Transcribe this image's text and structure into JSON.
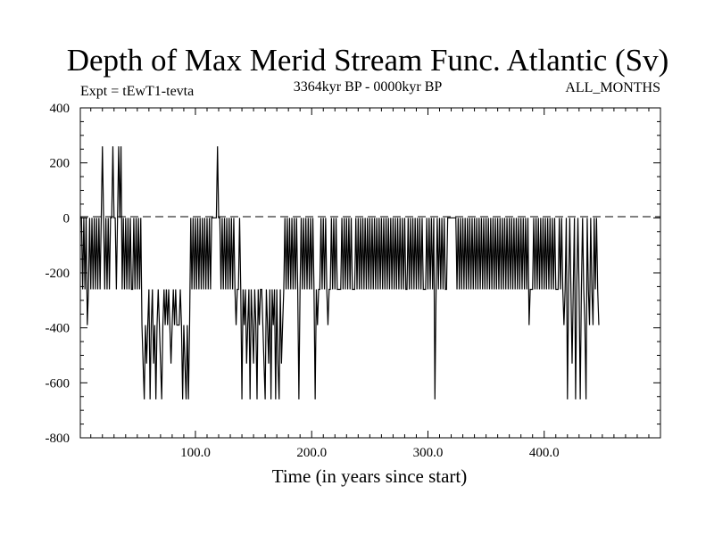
{
  "chart_data": {
    "type": "line",
    "title": "Depth of Max Merid Stream Func. Atlantic (Sv)",
    "experiment": "Expt = tEwT1-tevta",
    "period": "3364kyr BP - 0000kyr BP",
    "season": "ALL_MONTHS",
    "xlabel": "Time (in years since start)",
    "ylabel": "",
    "xlim": [
      1,
      500
    ],
    "ylim": [
      -800,
      400
    ],
    "x_ticks": [
      100,
      200,
      300,
      400
    ],
    "x_tick_labels": [
      "100.0",
      "200.0",
      "300.0",
      "400.0"
    ],
    "y_ticks": [
      -800,
      -600,
      -400,
      -200,
      0,
      200,
      400
    ],
    "y_tick_labels": [
      "-800",
      "-600",
      "-400",
      "-200",
      "0",
      "200",
      "400"
    ],
    "zero_line": "dashed",
    "series": [
      {
        "name": "depth_of_max_stream_function",
        "x_start": 1,
        "x_step": 1,
        "values": [
          0,
          0,
          -260,
          0,
          -260,
          0,
          -390,
          -260,
          0,
          -260,
          0,
          -260,
          0,
          -260,
          0,
          -260,
          0,
          -260,
          0,
          260,
          0,
          -260,
          0,
          -260,
          0,
          -260,
          0,
          0,
          260,
          0,
          0,
          -260,
          0,
          260,
          0,
          260,
          -260,
          0,
          -260,
          0,
          -260,
          0,
          -260,
          0,
          -260,
          -260,
          0,
          -260,
          0,
          -260,
          0,
          -260,
          0,
          -390,
          -530,
          -660,
          -390,
          -530,
          -390,
          -260,
          -660,
          -390,
          -260,
          -530,
          -390,
          -660,
          -390,
          -260,
          -390,
          -530,
          -660,
          -390,
          -260,
          -390,
          -260,
          -390,
          -260,
          -390,
          -530,
          -390,
          -260,
          -390,
          -260,
          -390,
          -390,
          -390,
          -260,
          -390,
          -660,
          -390,
          -530,
          -660,
          -390,
          -660,
          -390,
          0,
          -260,
          0,
          -260,
          0,
          -260,
          0,
          -260,
          0,
          -260,
          0,
          -260,
          0,
          -260,
          0,
          -260,
          0,
          -260,
          0,
          0,
          0,
          0,
          0,
          260,
          0,
          0,
          -260,
          0,
          -260,
          0,
          -260,
          0,
          -260,
          0,
          -260,
          0,
          -260,
          0,
          -260,
          -390,
          -260,
          -260,
          0,
          -260,
          -660,
          -260,
          -390,
          -260,
          -530,
          -390,
          -260,
          -660,
          -260,
          -390,
          -530,
          -260,
          -390,
          -660,
          -260,
          -390,
          -260,
          -260,
          -390,
          -530,
          -660,
          -260,
          -390,
          -530,
          -260,
          -660,
          -260,
          -390,
          -260,
          -660,
          -260,
          -530,
          -660,
          -260,
          -530,
          -390,
          -260,
          0,
          -260,
          0,
          -260,
          0,
          -260,
          0,
          -260,
          0,
          -260,
          0,
          -260,
          -660,
          -260,
          0,
          -260,
          0,
          -260,
          0,
          -260,
          0,
          -260,
          0,
          -260,
          0,
          -260,
          -660,
          -260,
          -390,
          -260,
          -260,
          0,
          -260,
          0,
          -260,
          0,
          -260,
          -390,
          -260,
          -260,
          0,
          -260,
          0,
          -260,
          0,
          -260,
          -260,
          -260,
          -260,
          0,
          -260,
          0,
          -260,
          0,
          -260,
          0,
          -260,
          0,
          -260,
          -260,
          -260,
          0,
          -260,
          0,
          -260,
          0,
          -260,
          0,
          -260,
          0,
          -260,
          0,
          -260,
          0,
          -260,
          0,
          -260,
          0,
          -260,
          0,
          -260,
          0,
          -260,
          0,
          -260,
          0,
          -260,
          0,
          -260,
          0,
          -260,
          0,
          -260,
          0,
          -260,
          0,
          -260,
          0,
          -260,
          0,
          -260,
          0,
          -260,
          0,
          -260,
          -260,
          0,
          -260,
          0,
          -260,
          0,
          -260,
          0,
          -260,
          0,
          -260,
          0,
          -260,
          0,
          -260,
          -260,
          -260,
          0,
          -260,
          0,
          -260,
          0,
          -260,
          0,
          -660,
          -260,
          0,
          -260,
          0,
          -260,
          0,
          -260,
          0,
          -260,
          -260,
          0,
          0,
          0,
          0,
          0,
          0,
          0,
          0,
          -260,
          0,
          -260,
          0,
          -260,
          0,
          -260,
          0,
          -260,
          0,
          -260,
          0,
          -260,
          0,
          -260,
          0,
          -260,
          0,
          -260,
          0,
          -260,
          0,
          -260,
          0,
          -260,
          0,
          -260,
          0,
          -260,
          0,
          -260,
          0,
          -260,
          0,
          -260,
          0,
          -260,
          0,
          -260,
          0,
          -260,
          0,
          -260,
          0,
          -260,
          0,
          -260,
          0,
          -260,
          0,
          -260,
          0,
          -260,
          0,
          -260,
          0,
          -260,
          0,
          -260,
          0,
          -260,
          0,
          -390,
          -260,
          -260,
          -260,
          0,
          -260,
          0,
          -260,
          0,
          -260,
          0,
          -260,
          0,
          -260,
          0,
          -260,
          0,
          -260,
          0,
          -260,
          0,
          -260,
          0,
          -260,
          -260,
          -260,
          0,
          -260,
          0,
          -260,
          -390,
          -260,
          0,
          -660,
          -260,
          0,
          -260,
          -530,
          -260,
          0,
          -660,
          -260,
          0,
          -260,
          -660,
          -260,
          0,
          -260,
          -390,
          -660,
          0,
          -260,
          -390,
          0,
          -260,
          -390,
          0,
          -260,
          0,
          -260,
          -390
        ]
      }
    ]
  }
}
